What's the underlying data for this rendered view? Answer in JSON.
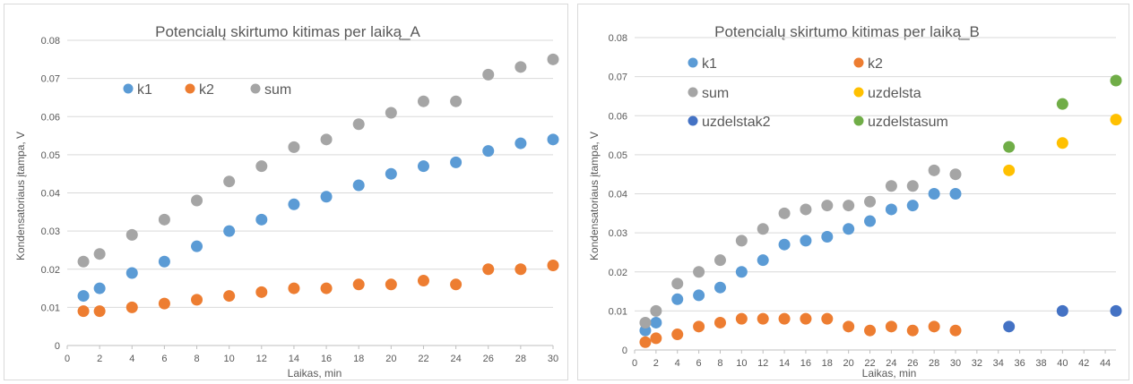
{
  "colors": {
    "k1": "#5b9bd5",
    "k2": "#ed7d31",
    "sum": "#a5a5a5",
    "uzdelsta": "#ffc000",
    "uzdelstak2": "#4472c4",
    "uzdelstasum": "#70ad47",
    "grid": "#d9d9d9",
    "text": "#595959"
  },
  "chart_data": [
    {
      "type": "scatter",
      "title": "Potencialų skirtumo kitimas per laiką_A",
      "xlabel": "Laikas, min",
      "ylabel": "Kondensatoriaus įtampa, V",
      "xlim": [
        0,
        30
      ],
      "ylim": [
        0,
        0.08
      ],
      "xticks": [
        "0",
        "2",
        "4",
        "6",
        "8",
        "10",
        "12",
        "14",
        "16",
        "18",
        "20",
        "22",
        "24",
        "26",
        "28",
        "30"
      ],
      "yticks": [
        "0",
        "0.01",
        "0.02",
        "0.03",
        "0.04",
        "0.05",
        "0.06",
        "0.07",
        "0.08"
      ],
      "grid": true,
      "legend": "top-left",
      "series": [
        {
          "name": "k1",
          "color_key": "k1",
          "x": [
            1,
            2,
            4,
            6,
            8,
            10,
            12,
            14,
            16,
            18,
            20,
            22,
            24,
            26,
            28,
            30
          ],
          "y": [
            0.013,
            0.015,
            0.019,
            0.022,
            0.026,
            0.03,
            0.033,
            0.037,
            0.039,
            0.042,
            0.045,
            0.047,
            0.048,
            0.051,
            0.053,
            0.054
          ]
        },
        {
          "name": "k2",
          "color_key": "k2",
          "x": [
            1,
            2,
            4,
            6,
            8,
            10,
            12,
            14,
            16,
            18,
            20,
            22,
            24,
            26,
            28,
            30
          ],
          "y": [
            0.009,
            0.009,
            0.01,
            0.011,
            0.012,
            0.013,
            0.014,
            0.015,
            0.015,
            0.016,
            0.016,
            0.017,
            0.016,
            0.02,
            0.02,
            0.021
          ]
        },
        {
          "name": "sum",
          "color_key": "sum",
          "x": [
            1,
            2,
            4,
            6,
            8,
            10,
            12,
            14,
            16,
            18,
            20,
            22,
            24,
            26,
            28,
            30
          ],
          "y": [
            0.022,
            0.024,
            0.029,
            0.033,
            0.038,
            0.043,
            0.047,
            0.052,
            0.054,
            0.058,
            0.061,
            0.064,
            0.064,
            0.071,
            0.073,
            0.075
          ]
        }
      ]
    },
    {
      "type": "scatter",
      "title": "Potencialų skirtumo kitimas per laiką_B",
      "xlabel": "Laikas, min",
      "ylabel": "Kondensatoriaus įtampa, V",
      "xlim": [
        0,
        45
      ],
      "ylim": [
        0,
        0.08
      ],
      "xticks": [
        "0",
        "2",
        "4",
        "6",
        "8",
        "10",
        "12",
        "14",
        "16",
        "18",
        "20",
        "22",
        "24",
        "26",
        "28",
        "30",
        "32",
        "34",
        "36",
        "38",
        "40",
        "42",
        "44"
      ],
      "yticks": [
        "0",
        "0.01",
        "0.02",
        "0.03",
        "0.04",
        "0.05",
        "0.06",
        "0.07",
        "0.08"
      ],
      "grid": true,
      "legend": "top-left",
      "series": [
        {
          "name": "k1",
          "color_key": "k1",
          "x": [
            1,
            2,
            4,
            6,
            8,
            10,
            12,
            14,
            16,
            18,
            20,
            22,
            24,
            26,
            28,
            30
          ],
          "y": [
            0.005,
            0.007,
            0.013,
            0.014,
            0.016,
            0.02,
            0.023,
            0.027,
            0.028,
            0.029,
            0.031,
            0.033,
            0.036,
            0.037,
            0.04,
            0.04
          ]
        },
        {
          "name": "k2",
          "color_key": "k2",
          "x": [
            1,
            2,
            4,
            6,
            8,
            10,
            12,
            14,
            16,
            18,
            20,
            22,
            24,
            26,
            28,
            30
          ],
          "y": [
            0.002,
            0.003,
            0.004,
            0.006,
            0.007,
            0.008,
            0.008,
            0.008,
            0.008,
            0.008,
            0.006,
            0.005,
            0.006,
            0.005,
            0.006,
            0.005
          ]
        },
        {
          "name": "sum",
          "color_key": "sum",
          "x": [
            1,
            2,
            4,
            6,
            8,
            10,
            12,
            14,
            16,
            18,
            20,
            22,
            24,
            26,
            28,
            30
          ],
          "y": [
            0.007,
            0.01,
            0.017,
            0.02,
            0.023,
            0.028,
            0.031,
            0.035,
            0.036,
            0.037,
            0.037,
            0.038,
            0.042,
            0.042,
            0.046,
            0.045
          ]
        },
        {
          "name": "uzdelsta",
          "color_key": "uzdelsta",
          "x": [
            35,
            40,
            45
          ],
          "y": [
            0.046,
            0.053,
            0.059
          ]
        },
        {
          "name": "uzdelstak2",
          "color_key": "uzdelstak2",
          "x": [
            35,
            40,
            45
          ],
          "y": [
            0.006,
            0.01,
            0.01
          ]
        },
        {
          "name": "uzdelstasum",
          "color_key": "uzdelstasum",
          "x": [
            35,
            40,
            45
          ],
          "y": [
            0.052,
            0.063,
            0.069
          ]
        }
      ]
    }
  ]
}
